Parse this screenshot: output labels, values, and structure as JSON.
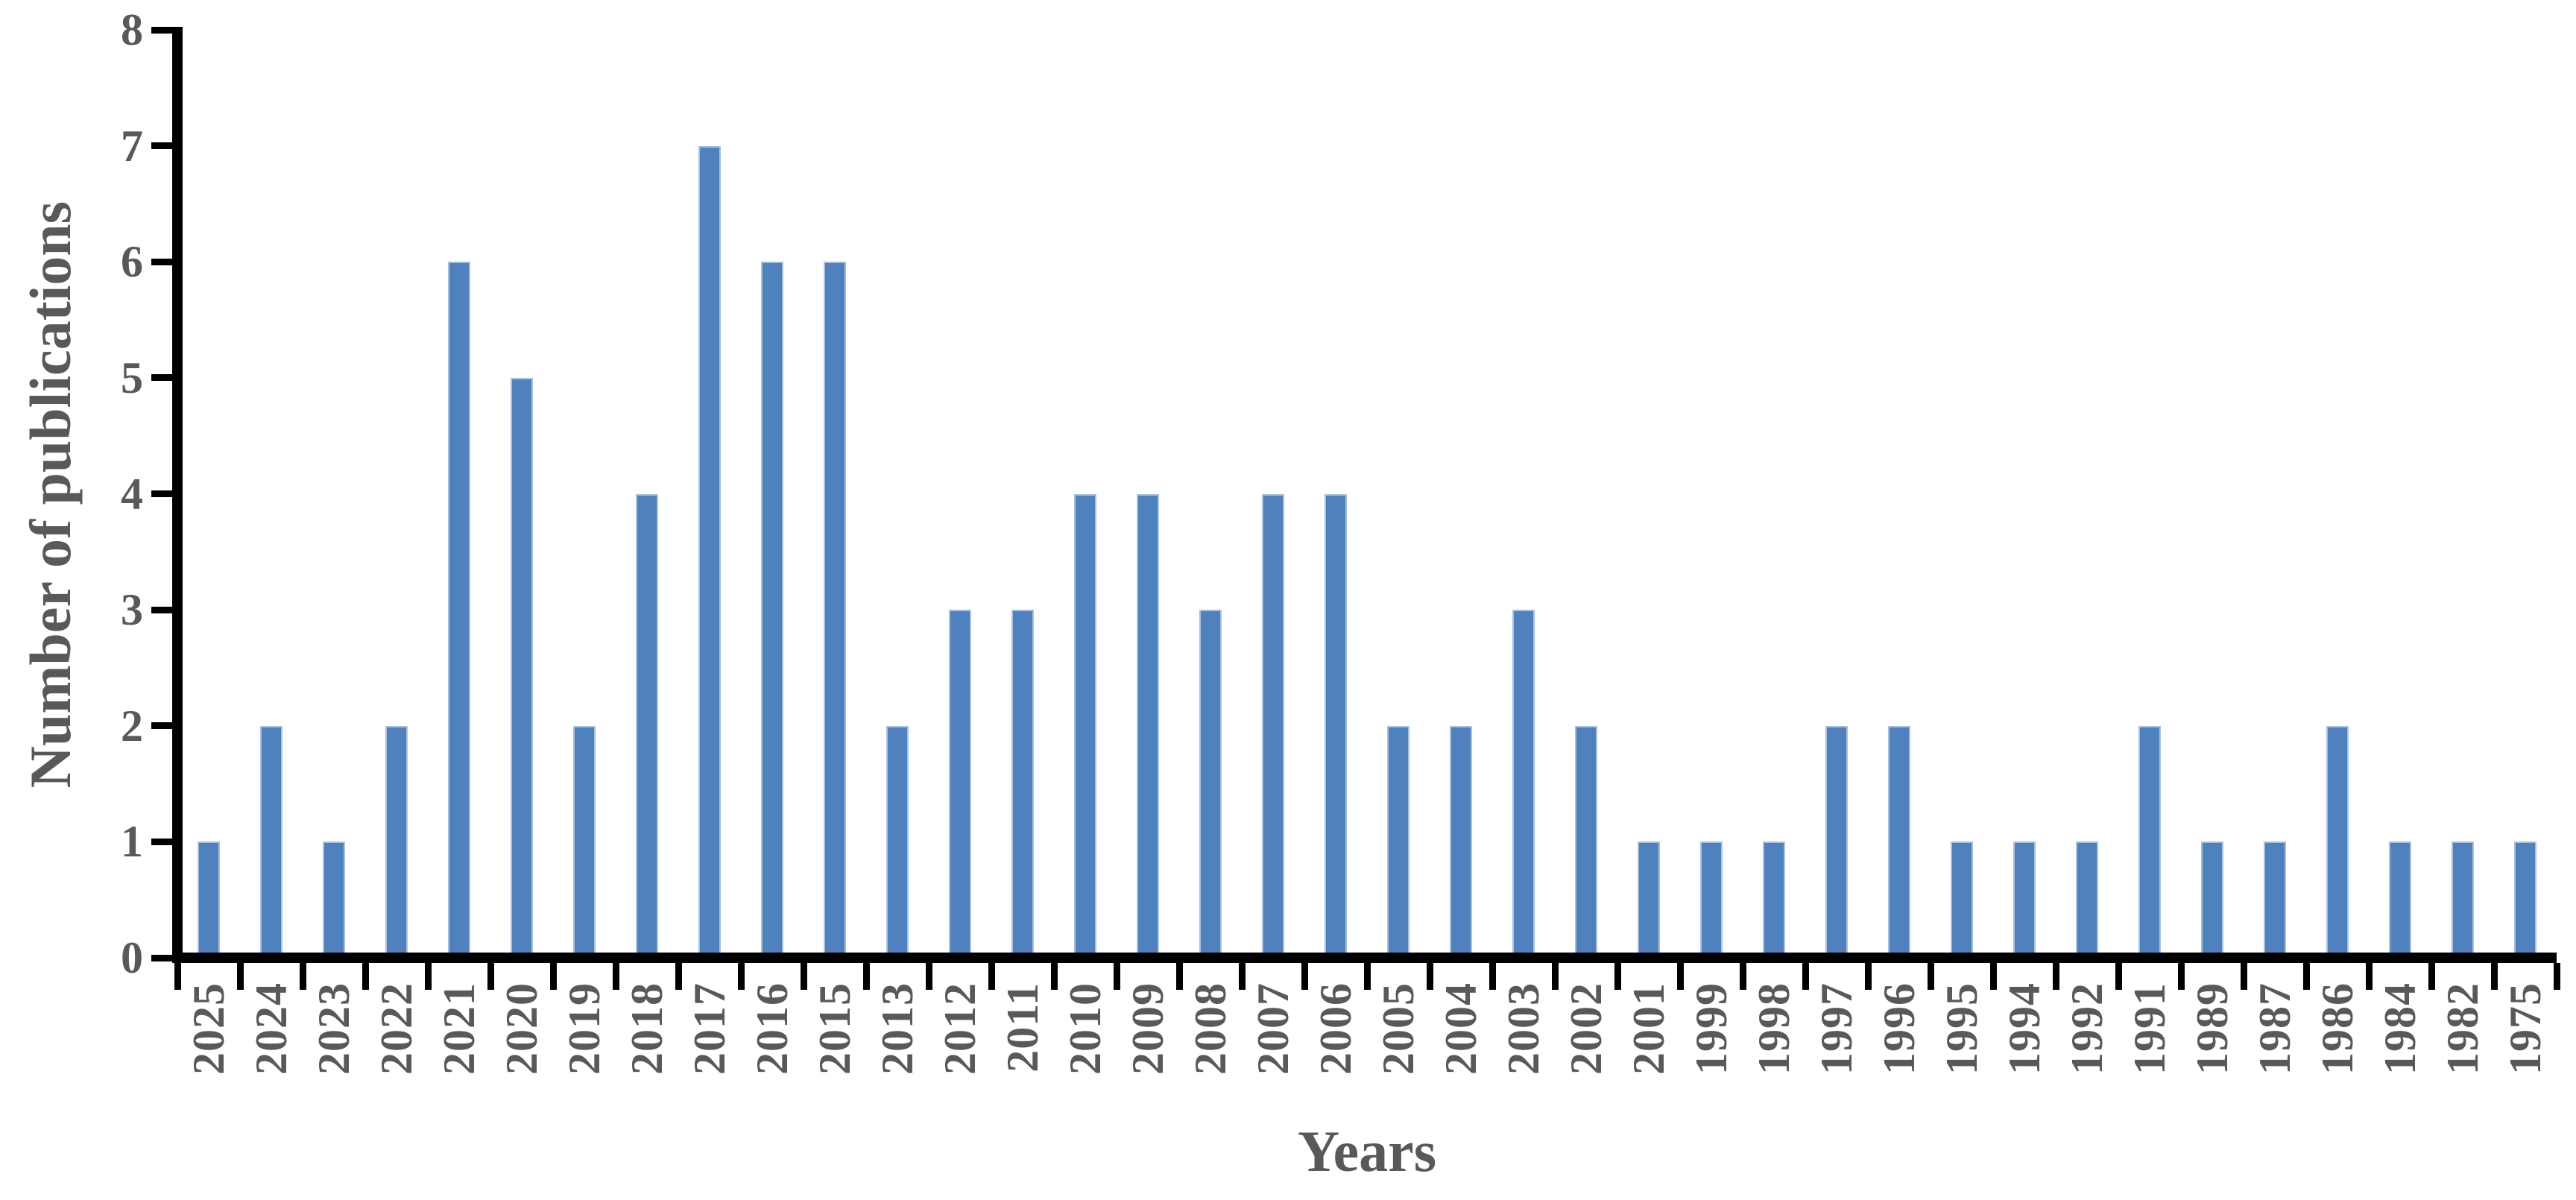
{
  "figure": {
    "background_color": "#FFFFFF",
    "text_color": "#595959",
    "axis_color": "#000000"
  },
  "chart_data": {
    "type": "bar",
    "title": "",
    "xlabel": "Years",
    "ylabel": "Number of publications",
    "categories": [
      "2025",
      "2024",
      "2023",
      "2022",
      "2021",
      "2020",
      "2019",
      "2018",
      "2017",
      "2016",
      "2015",
      "2013",
      "2012",
      "2011",
      "2010",
      "2009",
      "2008",
      "2007",
      "2006",
      "2005",
      "2004",
      "2003",
      "2002",
      "2001",
      "1999",
      "1998",
      "1997",
      "1996",
      "1995",
      "1994",
      "1992",
      "1991",
      "1989",
      "1987",
      "1986",
      "1984",
      "1982",
      "1975"
    ],
    "values": [
      1,
      2,
      1,
      2,
      6,
      5,
      2,
      4,
      7,
      6,
      6,
      2,
      3,
      3,
      4,
      4,
      3,
      4,
      4,
      2,
      2,
      3,
      2,
      1,
      1,
      1,
      2,
      2,
      1,
      1,
      1,
      2,
      1,
      1,
      2,
      1,
      1,
      1
    ],
    "ylim": [
      0,
      8
    ],
    "yticks": [
      0,
      1,
      2,
      3,
      4,
      5,
      6,
      7,
      8
    ],
    "grid": false,
    "legend": "none",
    "bar_color": "#4E81BD",
    "bar_border_color": "#A9C1E0",
    "x_tick_style": "boundary-ticks, labels rotated 90deg reading bottom-to-top"
  }
}
